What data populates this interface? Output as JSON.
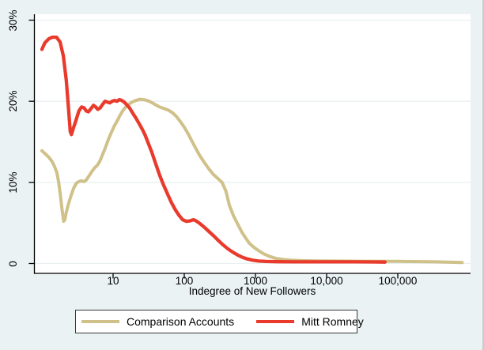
{
  "colors": {
    "background": "#eaf2f3",
    "plot_background": "#ffffff",
    "gridline": "#e9f0f1",
    "axis": "#000000",
    "legend_border": "#33373a",
    "comparison_accounts": "#cfc189",
    "mitt_romney": "#e93a2c"
  },
  "chart_data": {
    "type": "line",
    "title": "",
    "xlabel": "Indegree of New Followers",
    "ylabel": "",
    "x_scale": "log10",
    "xlim": [
      0.78,
      1060000
    ],
    "ylim": [
      0,
      30
    ],
    "grid": true,
    "legend_position": "bottom",
    "x_ticks": [
      {
        "value": 10,
        "label": "10"
      },
      {
        "value": 100,
        "label": "100"
      },
      {
        "value": 1000,
        "label": "1000"
      },
      {
        "value": 10000,
        "label": "10,000"
      },
      {
        "value": 100000,
        "label": "100,000"
      }
    ],
    "y_ticks": [
      {
        "value": 0,
        "label": "0"
      },
      {
        "value": 10,
        "label": "10%"
      },
      {
        "value": 20,
        "label": "20%"
      },
      {
        "value": 30,
        "label": "30%"
      }
    ],
    "series": [
      {
        "name": "Comparison Accounts",
        "color": "#cfc189",
        "points": [
          [
            1,
            13.9
          ],
          [
            1.12,
            13.5
          ],
          [
            1.25,
            13.1
          ],
          [
            1.38,
            12.6
          ],
          [
            1.5,
            12.0
          ],
          [
            1.62,
            11.2
          ],
          [
            1.72,
            10.0
          ],
          [
            1.82,
            8.4
          ],
          [
            1.92,
            6.6
          ],
          [
            2.02,
            5.2
          ],
          [
            2.1,
            5.4
          ],
          [
            2.2,
            6.3
          ],
          [
            2.35,
            7.3
          ],
          [
            2.55,
            8.3
          ],
          [
            2.8,
            9.3
          ],
          [
            3.05,
            9.9
          ],
          [
            3.3,
            10.1
          ],
          [
            3.6,
            10.2
          ],
          [
            3.9,
            10.1
          ],
          [
            4.2,
            10.3
          ],
          [
            4.6,
            10.8
          ],
          [
            5.0,
            11.3
          ],
          [
            5.5,
            11.8
          ],
          [
            6.0,
            12.1
          ],
          [
            6.5,
            12.6
          ],
          [
            7.1,
            13.4
          ],
          [
            7.8,
            14.3
          ],
          [
            8.6,
            15.3
          ],
          [
            9.4,
            16.1
          ],
          [
            10.3,
            16.9
          ],
          [
            11.3,
            17.5
          ],
          [
            12.4,
            18.2
          ],
          [
            13.6,
            18.8
          ],
          [
            15,
            19.3
          ],
          [
            16.5,
            19.6
          ],
          [
            18.5,
            19.9
          ],
          [
            21,
            20.1
          ],
          [
            24,
            20.25
          ],
          [
            27,
            20.2
          ],
          [
            30,
            20.1
          ],
          [
            34,
            19.9
          ],
          [
            39,
            19.6
          ],
          [
            45,
            19.3
          ],
          [
            52,
            19.1
          ],
          [
            60,
            18.9
          ],
          [
            68,
            18.6
          ],
          [
            78,
            18.1
          ],
          [
            88,
            17.5
          ],
          [
            100,
            16.8
          ],
          [
            113,
            16.0
          ],
          [
            128,
            15.1
          ],
          [
            145,
            14.2
          ],
          [
            165,
            13.3
          ],
          [
            190,
            12.5
          ],
          [
            220,
            11.7
          ],
          [
            255,
            11.0
          ],
          [
            295,
            10.5
          ],
          [
            340,
            10.0
          ],
          [
            385,
            8.9
          ],
          [
            430,
            7.2
          ],
          [
            490,
            5.9
          ],
          [
            560,
            4.9
          ],
          [
            640,
            3.9
          ],
          [
            720,
            3.2
          ],
          [
            820,
            2.5
          ],
          [
            950,
            2.0
          ],
          [
            1100,
            1.6
          ],
          [
            1300,
            1.2
          ],
          [
            1550,
            0.9
          ],
          [
            1900,
            0.65
          ],
          [
            2400,
            0.5
          ],
          [
            3200,
            0.4
          ],
          [
            4500,
            0.35
          ],
          [
            7000,
            0.32
          ],
          [
            12000,
            0.3
          ],
          [
            25000,
            0.28
          ],
          [
            50000,
            0.27
          ],
          [
            100000,
            0.26
          ],
          [
            200000,
            0.23
          ],
          [
            350000,
            0.2
          ],
          [
            550000,
            0.16
          ],
          [
            800000,
            0.12
          ]
        ]
      },
      {
        "name": "Mitt Romney",
        "color": "#e93a2c",
        "points": [
          [
            1,
            26.4
          ],
          [
            1.1,
            27.2
          ],
          [
            1.25,
            27.7
          ],
          [
            1.4,
            27.9
          ],
          [
            1.6,
            27.9
          ],
          [
            1.8,
            27.3
          ],
          [
            2.0,
            25.6
          ],
          [
            2.2,
            22.6
          ],
          [
            2.35,
            19.4
          ],
          [
            2.5,
            16.3
          ],
          [
            2.6,
            15.9
          ],
          [
            2.75,
            16.6
          ],
          [
            3.0,
            17.6
          ],
          [
            3.3,
            18.8
          ],
          [
            3.6,
            19.3
          ],
          [
            3.9,
            19.2
          ],
          [
            4.2,
            18.8
          ],
          [
            4.5,
            18.7
          ],
          [
            4.9,
            19.1
          ],
          [
            5.3,
            19.5
          ],
          [
            5.7,
            19.3
          ],
          [
            6.1,
            19.0
          ],
          [
            6.6,
            19.2
          ],
          [
            7.1,
            19.6
          ],
          [
            7.7,
            20.0
          ],
          [
            8.3,
            19.9
          ],
          [
            9.0,
            19.8
          ],
          [
            9.7,
            20.0
          ],
          [
            10.5,
            20.1
          ],
          [
            11.3,
            20.0
          ],
          [
            12.2,
            20.2
          ],
          [
            13.2,
            20.1
          ],
          [
            14.3,
            19.9
          ],
          [
            15.5,
            19.6
          ],
          [
            17,
            19.2
          ],
          [
            19,
            18.5
          ],
          [
            21,
            17.9
          ],
          [
            23,
            17.3
          ],
          [
            25.5,
            16.6
          ],
          [
            28,
            15.9
          ],
          [
            31,
            14.9
          ],
          [
            35,
            13.7
          ],
          [
            40,
            12.2
          ],
          [
            45,
            10.9
          ],
          [
            51,
            9.7
          ],
          [
            58,
            8.6
          ],
          [
            66,
            7.5
          ],
          [
            75,
            6.6
          ],
          [
            85,
            5.9
          ],
          [
            95,
            5.4
          ],
          [
            107,
            5.2
          ],
          [
            120,
            5.25
          ],
          [
            135,
            5.4
          ],
          [
            150,
            5.2
          ],
          [
            170,
            4.85
          ],
          [
            195,
            4.4
          ],
          [
            225,
            3.9
          ],
          [
            260,
            3.4
          ],
          [
            300,
            2.85
          ],
          [
            350,
            2.3
          ],
          [
            410,
            1.8
          ],
          [
            480,
            1.4
          ],
          [
            560,
            1.05
          ],
          [
            660,
            0.75
          ],
          [
            780,
            0.55
          ],
          [
            920,
            0.4
          ],
          [
            1100,
            0.3
          ],
          [
            1400,
            0.25
          ],
          [
            2000,
            0.22
          ],
          [
            3500,
            0.2
          ],
          [
            6000,
            0.2
          ],
          [
            12000,
            0.2
          ],
          [
            25000,
            0.2
          ],
          [
            45000,
            0.19
          ],
          [
            66000,
            0.18
          ]
        ]
      }
    ]
  }
}
